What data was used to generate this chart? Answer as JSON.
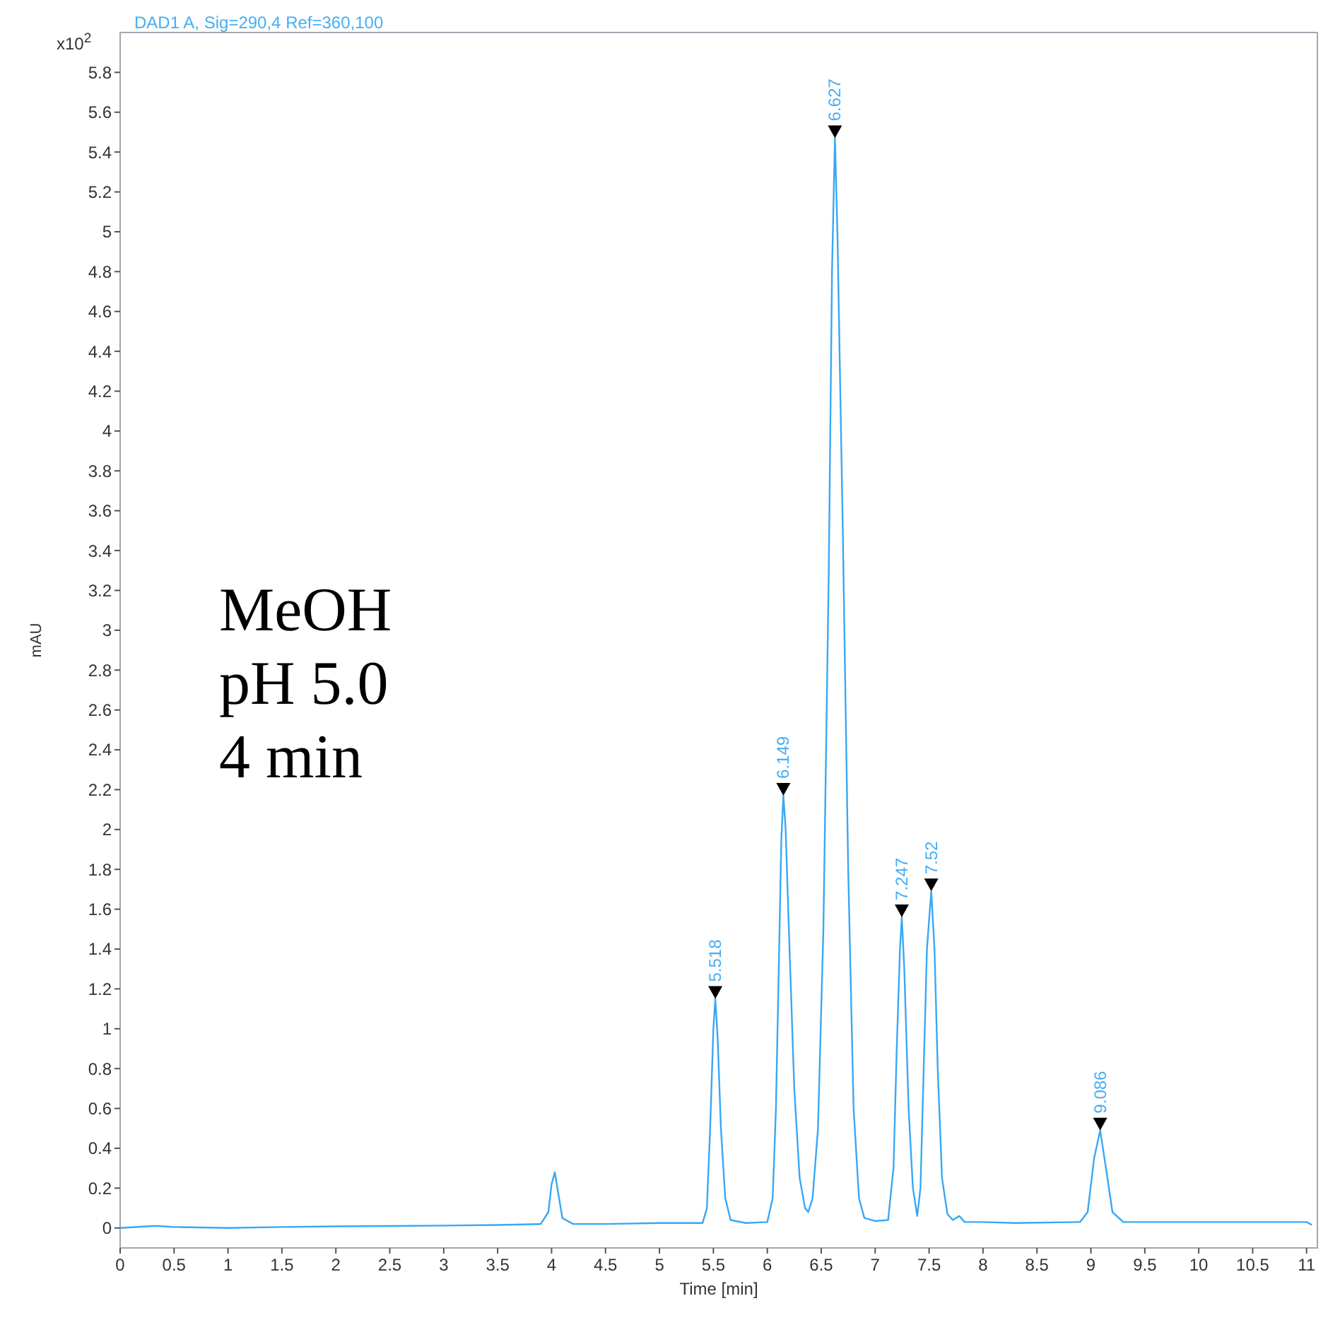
{
  "chart_data": {
    "type": "line",
    "title": "DAD1 A, Sig=290,4 Ref=360,100",
    "xlabel": "Time [min]",
    "ylabel": "mAU",
    "annotations": [
      "x10$^{2}$",
      "MeOH",
      "pH 5.0",
      "4 min",
      {
        "text": "5.518",
        "x": 5.518,
        "y": 1.15
      },
      {
        "text": "6.149",
        "x": 6.149,
        "y": 2.17
      },
      {
        "text": "6.627",
        "x": 6.627,
        "y": 5.47
      },
      {
        "text": "7.247",
        "x": 7.247,
        "y": 1.56
      },
      {
        "text": "7.52",
        "x": 7.52,
        "y": 1.69
      },
      {
        "text": "9.086",
        "x": 9.086,
        "y": 0.49
      }
    ],
    "series": [
      {
        "color": "#39a7f5",
        "x": [
          0,
          0.3,
          0.35,
          0.5,
          1,
          1.5,
          2,
          2.5,
          3,
          3.5,
          3.9,
          3.97,
          4.0,
          4.03,
          4.06,
          4.1,
          4.2,
          4.5,
          5,
          5.4,
          5.44,
          5.47,
          5.5,
          5.518,
          5.54,
          5.57,
          5.61,
          5.66,
          5.8,
          6.0,
          6.05,
          6.08,
          6.11,
          6.13,
          6.149,
          6.17,
          6.2,
          6.25,
          6.3,
          6.35,
          6.38,
          6.42,
          6.47,
          6.52,
          6.57,
          6.6,
          6.627,
          6.65,
          6.7,
          6.75,
          6.8,
          6.85,
          6.9,
          7.0,
          7.12,
          7.17,
          7.2,
          7.23,
          7.247,
          7.27,
          7.31,
          7.35,
          7.39,
          7.42,
          7.45,
          7.48,
          7.52,
          7.55,
          7.58,
          7.62,
          7.67,
          7.72,
          7.78,
          7.83,
          8.0,
          8.3,
          8.9,
          8.97,
          9.03,
          9.086,
          9.14,
          9.2,
          9.3,
          10,
          11,
          11.05
        ],
        "values": [
          0,
          0.01,
          0.01,
          0.005,
          0,
          0.005,
          0.008,
          0.01,
          0.012,
          0.015,
          0.02,
          0.08,
          0.22,
          0.28,
          0.18,
          0.05,
          0.02,
          0.02,
          0.025,
          0.025,
          0.1,
          0.5,
          1.0,
          1.15,
          0.95,
          0.5,
          0.15,
          0.04,
          0.025,
          0.03,
          0.15,
          0.6,
          1.4,
          1.95,
          2.17,
          2.0,
          1.5,
          0.7,
          0.25,
          0.1,
          0.08,
          0.15,
          0.5,
          1.5,
          3.3,
          4.8,
          5.47,
          5.0,
          3.5,
          1.8,
          0.6,
          0.15,
          0.05,
          0.035,
          0.04,
          0.3,
          0.9,
          1.4,
          1.56,
          1.3,
          0.6,
          0.2,
          0.06,
          0.2,
          0.8,
          1.4,
          1.69,
          1.4,
          0.8,
          0.25,
          0.07,
          0.04,
          0.06,
          0.03,
          0.03,
          0.025,
          0.03,
          0.08,
          0.35,
          0.49,
          0.3,
          0.08,
          0.03,
          0.03,
          0.03,
          0.015
        ]
      }
    ],
    "xlim": [
      0,
      11.1
    ],
    "ylim": [
      -0.1,
      6.0
    ],
    "xticks": [
      0,
      0.5,
      1,
      1.5,
      2,
      2.5,
      3,
      3.5,
      4,
      4.5,
      5,
      5.5,
      6,
      6.5,
      7,
      7.5,
      8,
      8.5,
      9,
      9.5,
      10,
      10.5,
      11
    ],
    "yticks": [
      0,
      0.2,
      0.4,
      0.6,
      0.8,
      1,
      1.2,
      1.4,
      1.6,
      1.8,
      2,
      2.2,
      2.4,
      2.6,
      2.8,
      3,
      3.2,
      3.4,
      3.6,
      3.8,
      4,
      4.2,
      4.4,
      4.6,
      4.8,
      5,
      5.2,
      5.4,
      5.6,
      5.8
    ],
    "grid": false,
    "marker": "none",
    "line_style": "solid"
  }
}
